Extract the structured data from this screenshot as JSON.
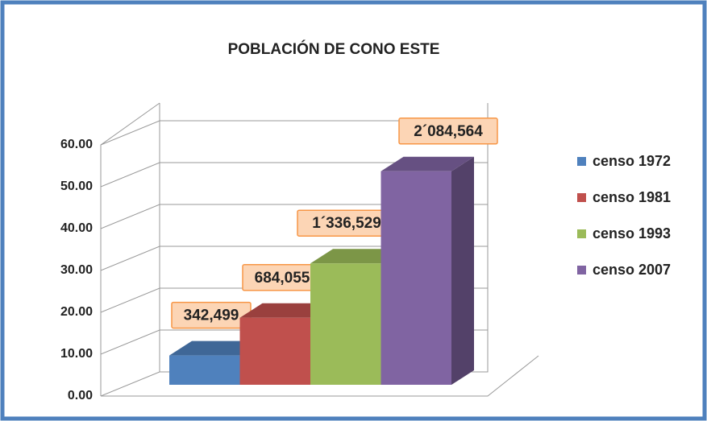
{
  "chart_data": {
    "type": "bar3d",
    "title": "POBLACIÓN DE CONO ESTE",
    "series": [
      {
        "name": "censo 1972",
        "color": "#4f81bd",
        "values": [
          7
        ]
      },
      {
        "name": "censo 1981",
        "color": "#c0504d",
        "values": [
          16
        ]
      },
      {
        "name": "censo 1993",
        "color": "#9bbb59",
        "values": [
          29
        ]
      },
      {
        "name": "censo 2007",
        "color": "#8064a2",
        "values": [
          51
        ]
      }
    ],
    "annotations": [
      "342,499",
      "684,055",
      "1´336,529",
      "2´084,564"
    ],
    "ylim": [
      0,
      60
    ],
    "yticks": [
      {
        "value": 0,
        "label": "0.00"
      },
      {
        "value": 10,
        "label": "10.00"
      },
      {
        "value": 20,
        "label": "20.00"
      },
      {
        "value": 30,
        "label": "30.00"
      },
      {
        "value": 40,
        "label": "40.00"
      },
      {
        "value": 50,
        "label": "50.00"
      },
      {
        "value": 60,
        "label": "60.00"
      }
    ],
    "grid": true,
    "legend": "right"
  }
}
